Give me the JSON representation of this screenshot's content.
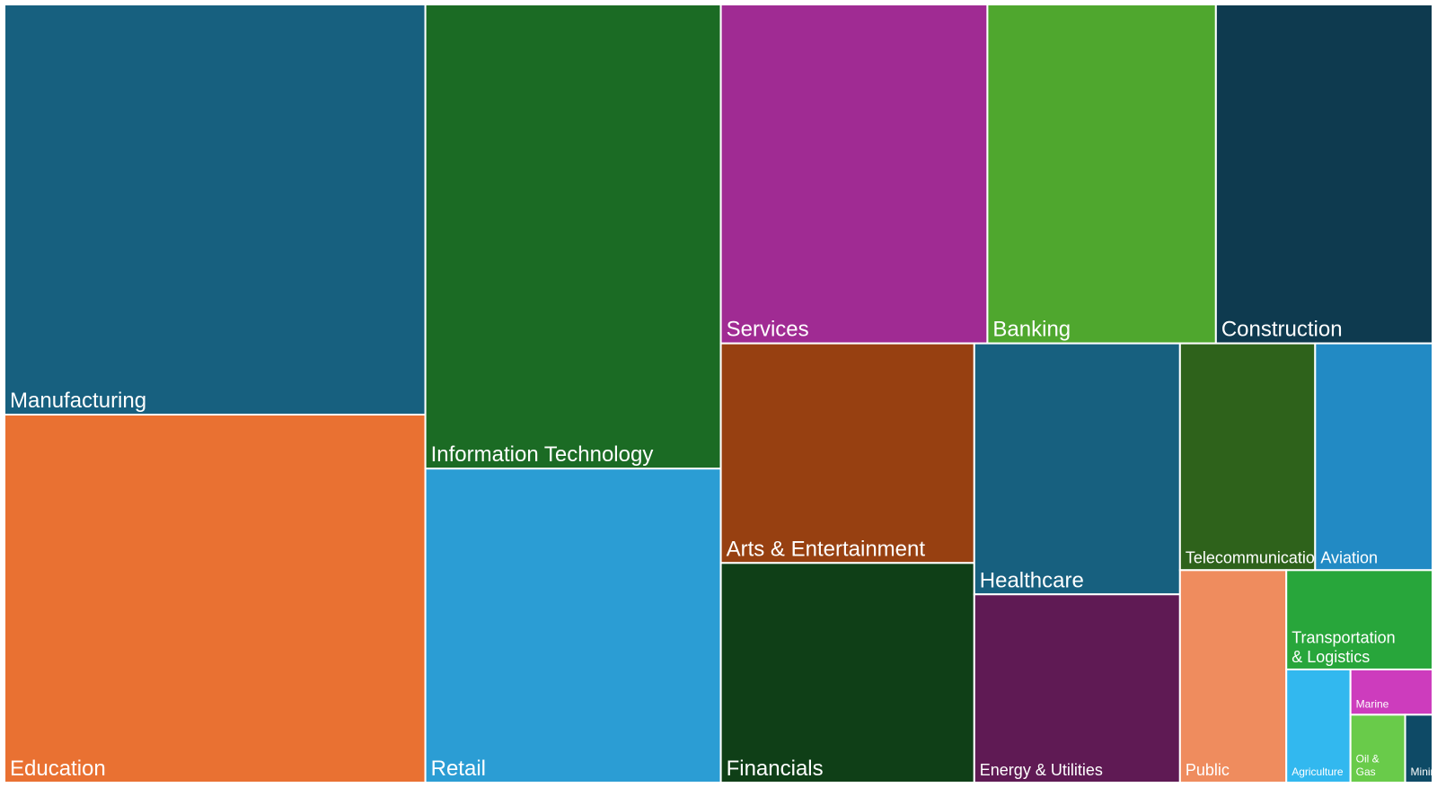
{
  "chart_data": {
    "type": "treemap",
    "title": "",
    "items": [
      {
        "label": "Manufacturing",
        "value": 214,
        "color": "#17607F"
      },
      {
        "label": "Education",
        "value": 192,
        "color": "#E97132"
      },
      {
        "label": "Information Technology",
        "value": 170,
        "color": "#1B6B24"
      },
      {
        "label": "Retail",
        "value": 115,
        "color": "#2B9DD4"
      },
      {
        "label": "Services",
        "value": 112,
        "color": "#A02B93"
      },
      {
        "label": "Banking",
        "value": 96,
        "color": "#4FA72E"
      },
      {
        "label": "Construction",
        "value": 91,
        "color": "#0E3A4F"
      },
      {
        "label": "Arts & Entertainment",
        "value": 69,
        "color": "#974011"
      },
      {
        "label": "Financials",
        "value": 69,
        "color": "#0F3F17"
      },
      {
        "label": "Healthcare",
        "value": 64,
        "color": "#17607F"
      },
      {
        "label": "Energy & Utilities",
        "value": 48,
        "color": "#5F1A54"
      },
      {
        "label": "Telecommunications",
        "value": 38,
        "color": "#2E621B"
      },
      {
        "label": "Aviation",
        "value": 33,
        "color": "#228AC4"
      },
      {
        "label": "Public",
        "value": 28,
        "color": "#EF8C5E"
      },
      {
        "label": "Transportation & Logistics",
        "value": 18,
        "color": "#28A63B"
      },
      {
        "label": "Agriculture",
        "value": 9,
        "color": "#32B8EF"
      },
      {
        "label": "Marine",
        "value": 4.6,
        "color": "#CD3CBD"
      },
      {
        "label": "Oil & Gas",
        "value": 4.6,
        "color": "#69CB4A"
      },
      {
        "label": "Mining",
        "value": 2.3,
        "color": "#0E4A66"
      }
    ]
  }
}
